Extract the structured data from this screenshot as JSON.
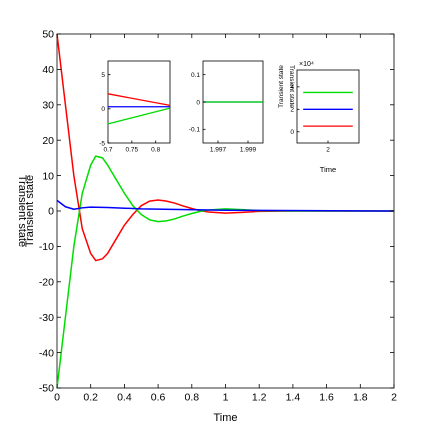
{
  "chart_data": [
    {
      "type": "line",
      "xlabel": "Time",
      "ylabel": "Transient state",
      "xlim": [
        0,
        2
      ],
      "ylim": [
        -50,
        50
      ],
      "xticks": [
        0,
        0.2,
        0.4,
        0.6,
        0.8,
        1,
        1.2,
        1.4,
        1.6,
        1.8,
        2
      ],
      "xtick_labels": [
        "0",
        "0.2",
        "0.4",
        "0.6",
        "0.8",
        "1",
        "1.2",
        "1.4",
        "1.6",
        "1.8",
        "2"
      ],
      "yticks": [
        -50,
        -40,
        -30,
        -20,
        -10,
        0,
        10,
        20,
        30,
        40,
        50
      ],
      "ytick_labels": [
        "-50",
        "-40",
        "-30",
        "-20",
        "-10",
        "0",
        "10",
        "20",
        "30",
        "40",
        "50"
      ],
      "grid": false,
      "series": [
        {
          "color": "#ff0000",
          "x": [
            0,
            0.05,
            0.1,
            0.15,
            0.2,
            0.23,
            0.27,
            0.3,
            0.35,
            0.4,
            0.45,
            0.5,
            0.55,
            0.6,
            0.65,
            0.7,
            0.75,
            0.8,
            0.85,
            0.9,
            1.0,
            1.1,
            1.2,
            1.4,
            2.0
          ],
          "y": [
            50,
            30,
            10,
            -5,
            -12,
            -14,
            -13.5,
            -12,
            -8,
            -4,
            -1,
            1.5,
            2.8,
            3.1,
            2.8,
            2.2,
            1.4,
            0.7,
            0.1,
            -0.3,
            -0.6,
            -0.4,
            -0.1,
            0,
            0
          ]
        },
        {
          "color": "#00dd00",
          "x": [
            0,
            0.05,
            0.1,
            0.15,
            0.2,
            0.23,
            0.27,
            0.3,
            0.35,
            0.4,
            0.45,
            0.5,
            0.55,
            0.6,
            0.65,
            0.7,
            0.75,
            0.8,
            0.85,
            0.9,
            1.0,
            1.1,
            1.2,
            1.4,
            2.0
          ],
          "y": [
            -50,
            -30,
            -10,
            5,
            13,
            15.5,
            15,
            13,
            9,
            5,
            1.5,
            -1,
            -2.5,
            -3,
            -2.8,
            -2.2,
            -1.4,
            -0.7,
            -0.1,
            0.3,
            0.6,
            0.4,
            0.1,
            0,
            0
          ]
        },
        {
          "color": "#0000ff",
          "x": [
            0,
            0.05,
            0.1,
            0.15,
            0.2,
            0.3,
            0.5,
            1.0,
            2.0
          ],
          "y": [
            3,
            1.2,
            0.5,
            0.9,
            1.1,
            1.0,
            0.6,
            0.2,
            0
          ]
        }
      ]
    },
    {
      "type": "line",
      "xlim": [
        0.7,
        0.83
      ],
      "ylim": [
        -5,
        7
      ],
      "xticks": [
        0.7,
        0.75,
        0.8
      ],
      "xtick_labels": [
        "0.7",
        "0.75",
        "0.8"
      ],
      "yticks": [
        -5,
        0,
        5
      ],
      "ytick_labels": [
        "-5",
        "0",
        "5"
      ],
      "series": [
        {
          "color": "#ff0000",
          "x": [
            0.7,
            0.83
          ],
          "y": [
            2.2,
            0.5
          ]
        },
        {
          "color": "#0000ff",
          "x": [
            0.7,
            0.83
          ],
          "y": [
            0.3,
            0.3
          ]
        },
        {
          "color": "#00dd00",
          "x": [
            0.7,
            0.83
          ],
          "y": [
            -2.2,
            0.1
          ]
        }
      ]
    },
    {
      "type": "line",
      "xlim": [
        1.996,
        2.0
      ],
      "ylim": [
        -0.15,
        0.15
      ],
      "xticks": [
        1.997,
        1.999
      ],
      "xtick_labels": [
        "1.997",
        "1.999"
      ],
      "yticks": [
        -0.1,
        0,
        0.1
      ],
      "ytick_labels": [
        "-0.1",
        "0",
        "0.1"
      ],
      "series": [
        {
          "color": "#0000ff",
          "x": [
            1.996,
            2.0
          ],
          "y": [
            0,
            0
          ]
        },
        {
          "color": "#00dd00",
          "x": [
            1.996,
            2.0
          ],
          "y": [
            0,
            0
          ]
        }
      ]
    },
    {
      "type": "line",
      "xlabel": "Time",
      "ylabel": "Transient state",
      "ylabel_multiplier": "×10⁴",
      "xlim": [
        1.9,
        2.1
      ],
      "ylim": [
        -1,
        5.5
      ],
      "xticks": [
        2
      ],
      "xtick_labels": [
        "2"
      ],
      "yticks": [
        0,
        2,
        4
      ],
      "ytick_labels": [
        "0",
        "2",
        "4"
      ],
      "series": [
        {
          "color": "#00dd00",
          "x": [
            1.92,
            2.08
          ],
          "y": [
            3.5,
            3.5
          ]
        },
        {
          "color": "#0000ff",
          "x": [
            1.92,
            2.08
          ],
          "y": [
            2.0,
            2.0
          ]
        },
        {
          "color": "#ff0000",
          "x": [
            1.92,
            2.08
          ],
          "y": [
            0.5,
            0.5
          ]
        }
      ]
    }
  ]
}
